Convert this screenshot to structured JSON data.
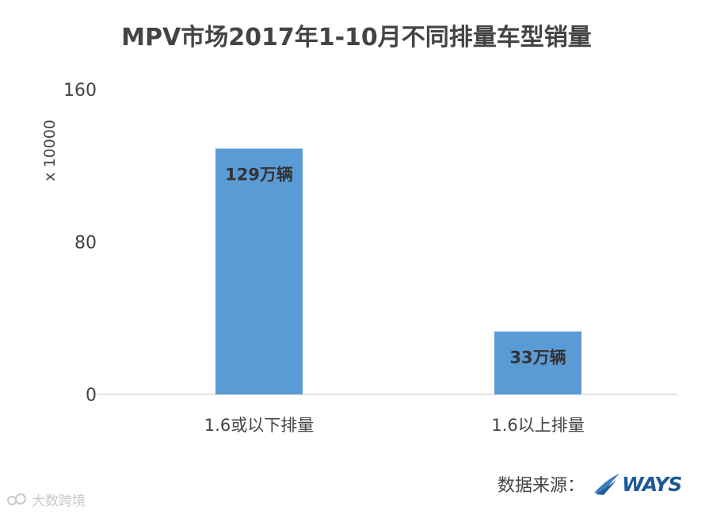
{
  "chart_data": {
    "type": "bar",
    "title": "MPV市场2017年1-10月不同排量车型销量",
    "ylabel": "x 10000",
    "ylim": [
      0,
      160
    ],
    "yticks": [
      "0",
      "80",
      "160"
    ],
    "categories": [
      "1.6或以下排量",
      "1.6以上排量"
    ],
    "values": [
      129,
      33
    ],
    "data_labels": [
      "129万辆",
      "33万辆"
    ],
    "grid": false,
    "legend": "none"
  },
  "colors": {
    "bar": "#5b9bd5",
    "axis": "#d9d9d9",
    "text": "#444444",
    "data_label": "#333333",
    "brand": "#1f5a96"
  },
  "source": {
    "label": "数据来源：",
    "brand": "WAYS",
    "brand_icon": "ways-swoosh-icon"
  },
  "watermark": {
    "text": "大数跨境",
    "icon": "dashuju-logo-icon"
  }
}
